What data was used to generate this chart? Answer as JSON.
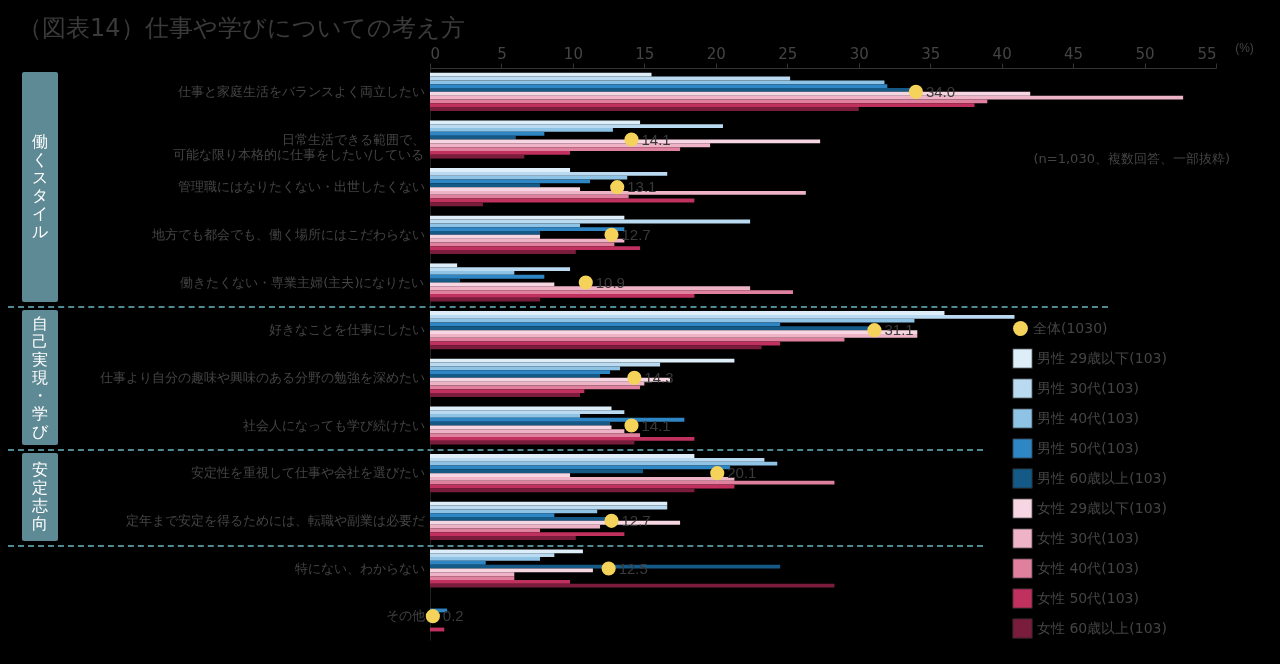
{
  "chart_data": {
    "type": "bar",
    "orientation": "horizontal",
    "title": "（図表14）仕事や学びについての考え方",
    "xlabel": "(%)",
    "categories": [
      "仕事と家庭生活をバランスよく両立したい",
      "日常生活できる範囲で、可能な限り本格的に仕事をしたい/している",
      "管理職にはなりたくない・出世したくない",
      "地方でも都会でも、働く場所にはこだわらない",
      "働きたくない・専業主婦(主夫)になりたい",
      "好きなことを仕事にしたい",
      "仕事より自分の趣味や興味のある分野の勉強を深めたい",
      "社会人になっても学び続けたい",
      "安定性を重視して仕事や会社を選びたい",
      "定年まで安定を得るためには、転職や副業は必要だ",
      "特にない、わからない",
      "その他"
    ],
    "xlim": [
      0,
      55
    ],
    "xticks": [
      0,
      5,
      10,
      15,
      20,
      25,
      30,
      35,
      40,
      45,
      50,
      55
    ],
    "grid": false,
    "legend": "right",
    "marker": "circle",
    "annotations": [
      "働くスタイル",
      "自己実現・学び",
      "安定志向",
      "(n=1,030、複数回答、一部抜粋)"
    ],
    "series": [
      {
        "name": "男性 29歳以下(103)",
        "color": "#deeef8",
        "values": [
          15.5,
          14.7,
          9.8,
          13.6,
          1.9,
          36.0,
          21.3,
          12.7,
          18.5,
          16.6,
          10.7,
          0
        ]
      },
      {
        "name": "男性 30代(103)",
        "color": "#b9daf0",
        "values": [
          25.2,
          20.5,
          16.6,
          22.4,
          9.8,
          40.9,
          16.1,
          13.6,
          23.4,
          16.6,
          8.7,
          0
        ]
      },
      {
        "name": "男性 40代(103)",
        "color": "#8ec3e6",
        "values": [
          31.8,
          12.8,
          13.8,
          10.5,
          5.9,
          33.9,
          13.3,
          10.5,
          24.3,
          11.7,
          7.7,
          0
        ]
      },
      {
        "name": "男性 50代(103)",
        "color": "#2f86c4",
        "values": [
          32.0,
          8.0,
          11.2,
          13.6,
          8.0,
          24.5,
          12.6,
          17.8,
          21.0,
          8.7,
          3.9,
          1.2
        ]
      },
      {
        "name": "男性 60歳以上(103)",
        "color": "#155a86",
        "values": [
          33.7,
          6.0,
          7.7,
          7.7,
          2.1,
          30.8,
          11.9,
          12.6,
          14.9,
          12.6,
          24.5,
          0
        ]
      },
      {
        "name": "女性 29歳以下(103)",
        "color": "#f6d6e2",
        "values": [
          42.0,
          27.3,
          10.5,
          7.7,
          8.7,
          34.1,
          16.8,
          12.7,
          9.8,
          17.5,
          11.4,
          0
        ]
      },
      {
        "name": "女性 30代(103)",
        "color": "#efb3c8",
        "values": [
          52.7,
          19.6,
          26.3,
          13.6,
          22.4,
          34.1,
          15.0,
          13.6,
          21.3,
          11.9,
          5.9,
          0
        ]
      },
      {
        "name": "女性 40代(103)",
        "color": "#e0809f",
        "values": [
          39.0,
          17.5,
          13.9,
          12.9,
          25.4,
          29.0,
          14.7,
          14.7,
          28.3,
          7.7,
          5.9,
          0
        ]
      },
      {
        "name": "女性 50代(103)",
        "color": "#c0315f",
        "values": [
          38.1,
          9.8,
          18.5,
          14.7,
          18.5,
          24.5,
          10.8,
          18.5,
          21.3,
          13.6,
          9.8,
          1.0
        ]
      },
      {
        "name": "女性 60歳以上(103)",
        "color": "#7a1d3d",
        "values": [
          30.0,
          6.6,
          3.7,
          10.2,
          7.7,
          23.2,
          10.5,
          14.3,
          18.5,
          10.2,
          28.3,
          0
        ]
      },
      {
        "name": "全体(1030)",
        "type": "scatter",
        "color": "#f5d35a",
        "values": [
          34.0,
          14.1,
          13.1,
          12.7,
          10.9,
          31.1,
          14.3,
          14.1,
          20.1,
          12.7,
          12.5,
          0.2
        ],
        "value_labels": [
          "34.0",
          "14.1",
          "13.1",
          "12.7",
          "10.9",
          "31.1",
          "14.3",
          "14.1",
          "20.1",
          "12.7",
          "12.5",
          "0.2"
        ]
      }
    ]
  }
}
